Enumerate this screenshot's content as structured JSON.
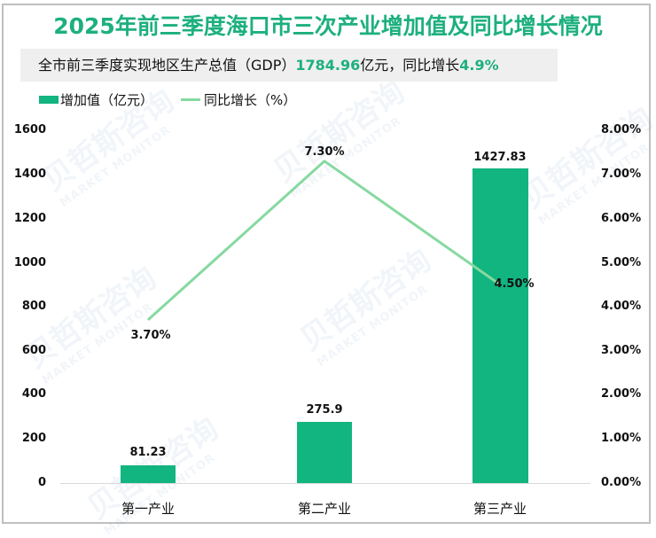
{
  "title": "2025年前三季度海口市三次产业增加值及同比增长情况",
  "subtitle": {
    "prefix": "全市前三季度实现地区生产总值（GDP）",
    "gdp_value": "1784.96",
    "middle": "亿元，同比增长",
    "growth": "4.9%"
  },
  "legend": [
    {
      "label": "增加值（亿元）",
      "type": "bar",
      "color": "#12b47f"
    },
    {
      "label": "同比增长（%）",
      "type": "line",
      "color": "#86d9a0"
    }
  ],
  "watermark": {
    "cn": "贝哲斯咨询",
    "en": "MARKET MONITOR"
  },
  "axes": {
    "left_ticks": [
      "1600",
      "1400",
      "1200",
      "1000",
      "800",
      "600",
      "400",
      "200",
      "0"
    ],
    "right_ticks": [
      "8.00%",
      "7.00%",
      "6.00%",
      "5.00%",
      "4.00%",
      "3.00%",
      "2.00%",
      "1.00%",
      "0.00%"
    ]
  },
  "chart_data": {
    "type": "bar",
    "title": "2025年前三季度海口市三次产业增加值及同比增长情况",
    "subtitle": "全市前三季度实现地区生产总值（GDP）1784.96亿元，同比增长4.9%",
    "categories": [
      "第一产业",
      "第二产业",
      "第三产业"
    ],
    "series": [
      {
        "name": "增加值（亿元）",
        "type": "bar",
        "axis": "left",
        "values": [
          81.23,
          275.9,
          1427.83
        ],
        "labels": [
          "81.23",
          "275.9",
          "1427.83"
        ],
        "color": "#12b47f"
      },
      {
        "name": "同比增长（%）",
        "type": "line",
        "axis": "right",
        "values": [
          3.7,
          7.3,
          4.5
        ],
        "labels": [
          "3.70%",
          "7.30%",
          "4.50%"
        ],
        "color": "#86d9a0"
      }
    ],
    "xlabel": "",
    "ylabel": "",
    "ylim": [
      0,
      1600
    ],
    "y2lim": [
      0,
      8
    ],
    "grid": false,
    "legend_position": "top-left"
  }
}
